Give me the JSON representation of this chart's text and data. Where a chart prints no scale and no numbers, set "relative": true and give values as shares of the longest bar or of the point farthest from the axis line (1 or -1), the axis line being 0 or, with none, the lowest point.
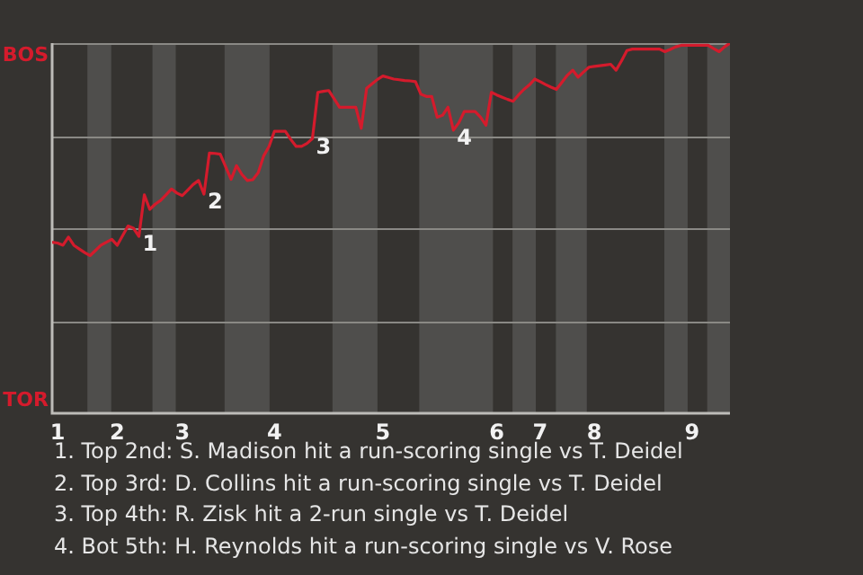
{
  "chart_data": {
    "type": "line",
    "relative": true,
    "categories": [
      null,
      "1",
      null,
      null,
      null,
      null,
      null,
      null,
      null,
      null,
      null,
      null,
      "2",
      null,
      null,
      null,
      null,
      null,
      null,
      null,
      null,
      null,
      null,
      null,
      "3",
      null,
      null,
      null,
      null,
      null,
      null,
      null,
      null,
      null,
      null,
      null,
      null,
      null,
      null,
      null,
      null,
      "4",
      null,
      null,
      null,
      null,
      null,
      null,
      null,
      null,
      null,
      null,
      null,
      null,
      null,
      null,
      null,
      null,
      null,
      null,
      null,
      "5",
      null,
      null,
      null,
      null,
      null,
      null,
      null,
      null,
      null,
      null,
      null,
      null,
      null,
      null,
      null,
      null,
      null,
      null,
      null,
      null,
      "6",
      null,
      null,
      null,
      null,
      null,
      null,
      null,
      "7",
      null,
      null,
      null,
      null,
      null,
      null,
      null,
      null,
      null,
      "8",
      null,
      null,
      null,
      null,
      null,
      null,
      null,
      null,
      null,
      null,
      null,
      null,
      null,
      null,
      null,
      null,
      null,
      "9",
      null,
      null,
      null,
      null,
      null,
      null,
      null
    ],
    "series": [
      {
        "color": "#d41b2c",
        "values": [
          0.462,
          0.46,
          0.454,
          0.476,
          0.454,
          0.444,
          0.434,
          0.426,
          0.44,
          0.454,
          0.462,
          0.47,
          0.454,
          0.48,
          0.506,
          0.5,
          0.478,
          0.59,
          0.551,
          0.565,
          0.575,
          0.59,
          0.606,
          0.595,
          0.588,
          0.603,
          0.618,
          0.629,
          0.592,
          0.703,
          0.702,
          0.7,
          0.666,
          0.632,
          0.669,
          0.645,
          0.629,
          0.631,
          0.65,
          0.695,
          0.721,
          0.762,
          0.762,
          0.762,
          0.74,
          0.721,
          0.721,
          0.729,
          0.742,
          0.867,
          0.87,
          0.872,
          0.85,
          0.827,
          0.827,
          0.827,
          0.827,
          0.77,
          0.878,
          0.89,
          0.902,
          0.911,
          0.907,
          0.903,
          0.901,
          0.899,
          0.898,
          0.896,
          0.862,
          0.856,
          0.856,
          0.8,
          0.805,
          0.827,
          0.765,
          0.785,
          0.815,
          0.815,
          0.815,
          0.8,
          0.778,
          0.867,
          0.86,
          0.854,
          0.848,
          0.843,
          0.86,
          0.875,
          0.887,
          0.903,
          0.896,
          0.888,
          0.881,
          0.875,
          0.894,
          0.913,
          0.927,
          0.908,
          0.922,
          0.935,
          0.937,
          0.939,
          0.941,
          0.943,
          0.927,
          0.952,
          0.98,
          0.984,
          0.984,
          0.984,
          0.984,
          0.984,
          0.984,
          0.977,
          0.983,
          0.99,
          0.994,
          0.994,
          0.994,
          0.994,
          0.994,
          0.994,
          0.985,
          0.977,
          0.99,
          1
        ]
      }
    ],
    "grid": "y",
    "legend": false,
    "marker": "none",
    "line_style": "solid",
    "annotations": [
      "BOS",
      "TOR",
      "1",
      "2",
      "3",
      "4",
      "1. Top 2nd: S. Madison hit a run-scoring single vs T. Deidel",
      "2. Top 3rd: D. Collins hit a run-scoring single vs T. Deidel",
      "3. Top 4th: R. Zisk hit a 2-run single vs T. Deidel",
      "4. Bot 5th: H. Reynolds hit a run-scoring single vs V. Rose"
    ]
  }
}
